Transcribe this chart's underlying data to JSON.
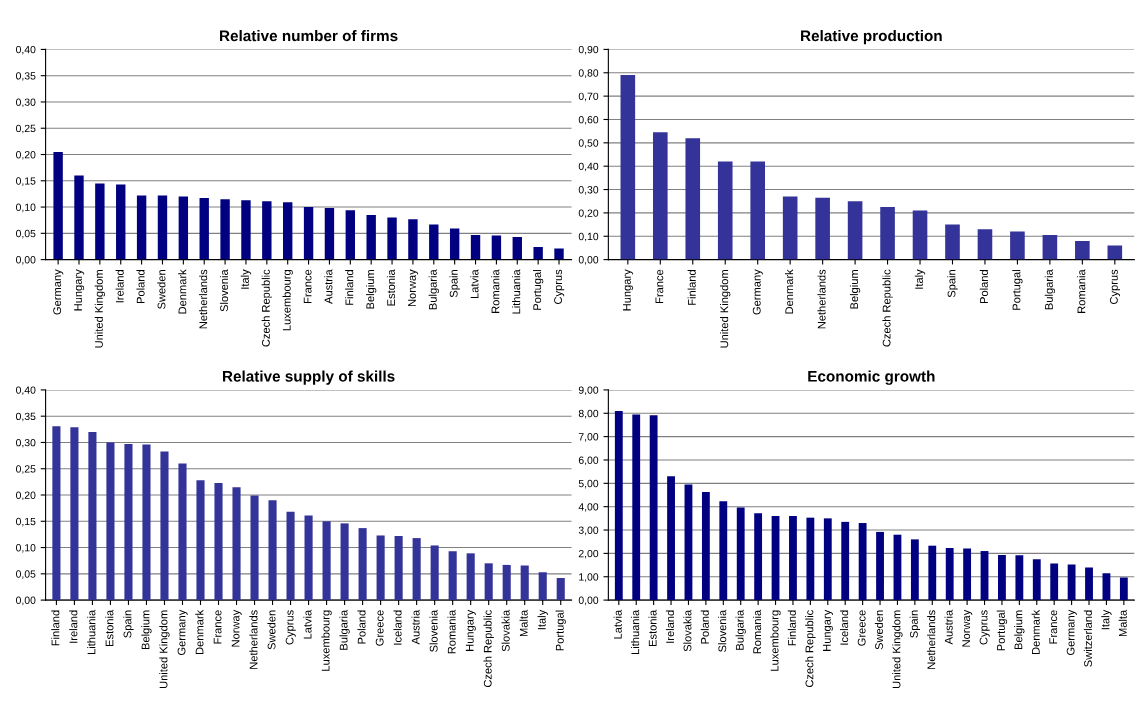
{
  "chart_data": [
    {
      "type": "bar",
      "title": "Relative number of firms",
      "grid": "y",
      "ylim": [
        0,
        0.4
      ],
      "yticks": [
        {
          "value": 0,
          "label": "0,00"
        },
        {
          "value": 0.05,
          "label": "0,05"
        },
        {
          "value": 0.1,
          "label": "0,10"
        },
        {
          "value": 0.15,
          "label": "0,15"
        },
        {
          "value": 0.2,
          "label": "0,20"
        },
        {
          "value": 0.25,
          "label": "0,25"
        },
        {
          "value": 0.3,
          "label": "0,30"
        },
        {
          "value": 0.35,
          "label": "0,35"
        },
        {
          "value": 0.4,
          "label": "0,40"
        }
      ],
      "categories": [
        "Germany",
        "Hungary",
        "United Kingdom",
        "Ireland",
        "Poland",
        "Sweden",
        "Denmark",
        "Netherlands",
        "Slovenia",
        "Italy",
        "Czech Republic",
        "Luxembourg",
        "France",
        "Austria",
        "Finland",
        "Belgium",
        "Estonia",
        "Norway",
        "Bulgaria",
        "Spain",
        "Latvia",
        "Romania",
        "Lithuania",
        "Portugal",
        "Cyprus"
      ],
      "series": [
        {
          "color": "#000080",
          "values": [
            0.205,
            0.16,
            0.145,
            0.143,
            0.122,
            0.122,
            0.12,
            0.117,
            0.115,
            0.113,
            0.111,
            0.109,
            0.1,
            0.098,
            0.094,
            0.085,
            0.08,
            0.077,
            0.067,
            0.059,
            0.047,
            0.046,
            0.043,
            0.024,
            0.021
          ]
        }
      ]
    },
    {
      "type": "bar",
      "title": "Relative production",
      "grid": "y",
      "ylim": [
        0,
        0.9
      ],
      "yticks": [
        {
          "value": 0,
          "label": "0,00"
        },
        {
          "value": 0.1,
          "label": "0,10"
        },
        {
          "value": 0.2,
          "label": "0,20"
        },
        {
          "value": 0.3,
          "label": "0,30"
        },
        {
          "value": 0.4,
          "label": "0,40"
        },
        {
          "value": 0.5,
          "label": "0,50"
        },
        {
          "value": 0.6,
          "label": "0,60"
        },
        {
          "value": 0.7,
          "label": "0,70"
        },
        {
          "value": 0.8,
          "label": "0,80"
        },
        {
          "value": 0.9,
          "label": "0,90"
        }
      ],
      "categories": [
        "Hungary",
        "France",
        "Finland",
        "United Kingdom",
        "Germany",
        "Denmark",
        "Netherlands",
        "Belgium",
        "Czech Republic",
        "Italy",
        "Spain",
        "Poland",
        "Portugal",
        "Bulgaria",
        "Romania",
        "Cyprus"
      ],
      "series": [
        {
          "color": "#333399",
          "values": [
            0.79,
            0.545,
            0.52,
            0.42,
            0.42,
            0.27,
            0.265,
            0.25,
            0.225,
            0.21,
            0.15,
            0.13,
            0.12,
            0.105,
            0.08,
            0.06
          ]
        }
      ]
    },
    {
      "type": "bar",
      "title": "Relative supply of skills",
      "grid": "y",
      "ylim": [
        0,
        0.4
      ],
      "yticks": [
        {
          "value": 0,
          "label": "0,00"
        },
        {
          "value": 0.05,
          "label": "0,05"
        },
        {
          "value": 0.1,
          "label": "0,10"
        },
        {
          "value": 0.15,
          "label": "0,15"
        },
        {
          "value": 0.2,
          "label": "0,20"
        },
        {
          "value": 0.25,
          "label": "0,25"
        },
        {
          "value": 0.3,
          "label": "0,30"
        },
        {
          "value": 0.35,
          "label": "0,35"
        },
        {
          "value": 0.4,
          "label": "0,40"
        }
      ],
      "categories": [
        "Finland",
        "Ireland",
        "Lithuania",
        "Estonia",
        "Spain",
        "Belgium",
        "United Kingdom",
        "Germany",
        "Denmark",
        "France",
        "Norway",
        "Netherlands",
        "Sweden",
        "Cyprus",
        "Latvia",
        "Luxembourg",
        "Bulgaria",
        "Poland",
        "Greece",
        "Iceland",
        "Austria",
        "Slovenia",
        "Romania",
        "Hungary",
        "Czech Republic",
        "Slovakia",
        "Malta",
        "Italy",
        "Portugal"
      ],
      "series": [
        {
          "color": "#333399",
          "values": [
            0.331,
            0.329,
            0.32,
            0.3,
            0.297,
            0.296,
            0.283,
            0.26,
            0.228,
            0.223,
            0.215,
            0.199,
            0.19,
            0.168,
            0.161,
            0.15,
            0.146,
            0.137,
            0.123,
            0.122,
            0.118,
            0.104,
            0.093,
            0.089,
            0.07,
            0.067,
            0.066,
            0.053,
            0.042
          ]
        }
      ]
    },
    {
      "type": "bar",
      "title": "Economic growth",
      "grid": "y",
      "ylim": [
        0,
        9
      ],
      "yticks": [
        {
          "value": 0,
          "label": "0,00"
        },
        {
          "value": 1,
          "label": "1,00"
        },
        {
          "value": 2,
          "label": "2,00"
        },
        {
          "value": 3,
          "label": "3,00"
        },
        {
          "value": 4,
          "label": "4,00"
        },
        {
          "value": 5,
          "label": "5,00"
        },
        {
          "value": 6,
          "label": "6,00"
        },
        {
          "value": 7,
          "label": "7,00"
        },
        {
          "value": 8,
          "label": "8,00"
        },
        {
          "value": 9,
          "label": "9,00"
        }
      ],
      "categories": [
        "Latvia",
        "Lithuania",
        "Estonia",
        "Ireland",
        "Slovakia",
        "Poland",
        "Slovenia",
        "Bulgaria",
        "Romania",
        "Luxembourg",
        "Finland",
        "Czech Republic",
        "Hungary",
        "Iceland",
        "Greece",
        "Sweden",
        "United Kingdom",
        "Spain",
        "Netherlands",
        "Austria",
        "Norway",
        "Cyprus",
        "Portugal",
        "Belgium",
        "Denmark",
        "France",
        "Germany",
        "Switzerland",
        "Italy",
        "Malta"
      ],
      "series": [
        {
          "color": "#000080",
          "values": [
            8.1,
            7.95,
            7.92,
            5.3,
            4.95,
            4.63,
            4.23,
            3.97,
            3.72,
            3.6,
            3.6,
            3.53,
            3.5,
            3.35,
            3.3,
            2.92,
            2.8,
            2.6,
            2.33,
            2.23,
            2.21,
            2.1,
            1.93,
            1.92,
            1.75,
            1.57,
            1.52,
            1.4,
            1.15,
            0.97
          ]
        }
      ]
    }
  ]
}
